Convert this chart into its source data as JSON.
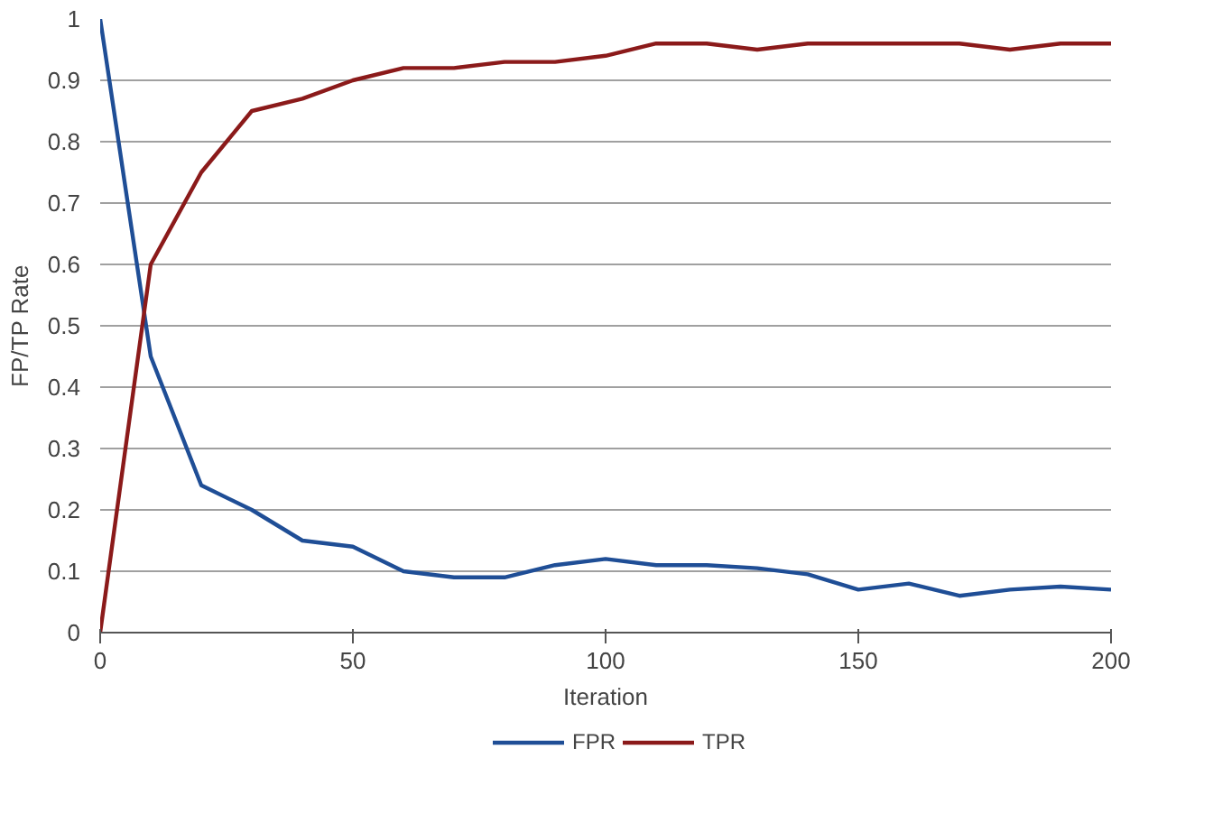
{
  "chart_data": {
    "type": "line",
    "xlabel": "Iteration",
    "ylabel": "FP/TP Rate",
    "x": [
      0,
      10,
      20,
      30,
      40,
      50,
      60,
      70,
      80,
      90,
      100,
      110,
      120,
      130,
      140,
      150,
      160,
      170,
      180,
      190,
      200
    ],
    "series": [
      {
        "name": "FPR",
        "color": "#1f4e96",
        "values": [
          1,
          0.45,
          0.24,
          0.2,
          0.15,
          0.14,
          0.1,
          0.09,
          0.09,
          0.11,
          0.12,
          0.11,
          0.11,
          0.105,
          0.095,
          0.07,
          0.08,
          0.06,
          0.07,
          0.075,
          0.07
        ]
      },
      {
        "name": "TPR",
        "color": "#8b1a1a",
        "values": [
          0,
          0.6,
          0.75,
          0.85,
          0.87,
          0.9,
          0.92,
          0.92,
          0.93,
          0.93,
          0.94,
          0.96,
          0.96,
          0.95,
          0.96,
          0.96,
          0.96,
          0.96,
          0.95,
          0.96,
          0.96
        ]
      }
    ],
    "xlim": [
      0,
      200
    ],
    "xticks": [
      0,
      50,
      100,
      150,
      200
    ],
    "ylim": [
      0,
      1
    ],
    "yticks": [
      0,
      0.1,
      0.2,
      0.3,
      0.4,
      0.5,
      0.6,
      0.7,
      0.8,
      0.9,
      1
    ],
    "grid": "y",
    "legend": "bottom",
    "marker": "none",
    "line_style": "solid"
  }
}
